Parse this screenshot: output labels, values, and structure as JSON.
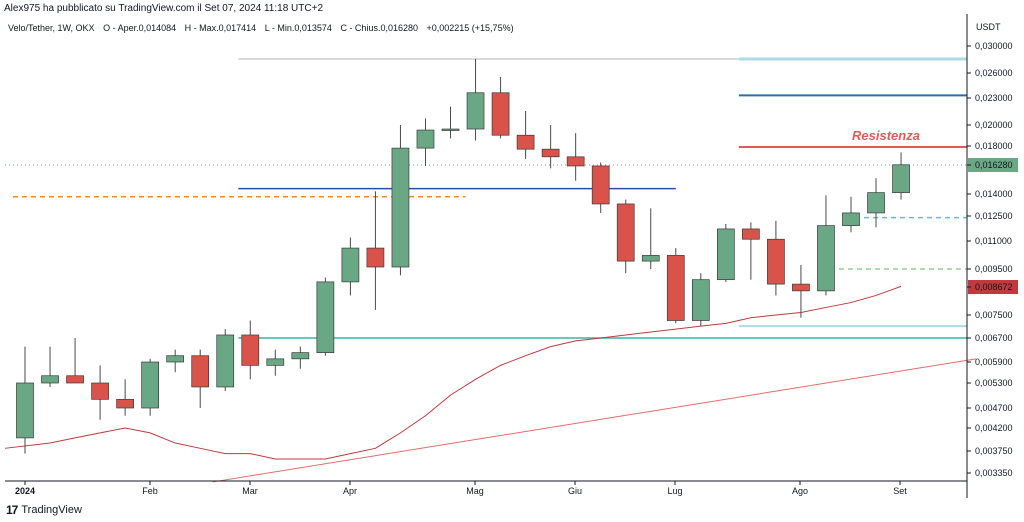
{
  "header": {
    "published": "Alex975 ha pubblicato su TradingView.com il Set 07, 2024 11:18 UTC+2",
    "legend_symbol": "Velo/Tether, 1W, OKX",
    "legend_open": "O - Aper.0,014084",
    "legend_high": "H - Max.0,017414",
    "legend_low": "L - Min.0,013574",
    "legend_close": "C - Chius.0,016280",
    "legend_change": "+0,002215 (+15,75%)"
  },
  "footer": {
    "brand": "TradingView"
  },
  "colors": {
    "up": "#6aa784",
    "down": "#d9534a",
    "ma": "#c0393d",
    "resistance": "#e05a5a"
  },
  "chart_data": {
    "type": "candlestick",
    "title": "Velo/Tether, 1W, OKX",
    "currency": "USDT",
    "y_ticks": [
      "0,030000",
      "0,026000",
      "0,023000",
      "0,020000",
      "0,018000",
      "0,016280",
      "0,014000",
      "0,012500",
      "0,011000",
      "0,009500",
      "0,008672",
      "0,007500",
      "0,006700",
      "0,005900",
      "0,005300",
      "0,004700",
      "0,004200",
      "0,003750",
      "0,003350"
    ],
    "x_ticks": [
      "2024",
      "Feb",
      "Mar",
      "Apr",
      "Mag",
      "Giu",
      "Lug",
      "Ago",
      "Set"
    ],
    "price_tag": {
      "value": "0,016280",
      "color": "#6aa784"
    },
    "ma_tag": {
      "value": "0,008672",
      "color": "#c0393d"
    },
    "annotation": "Resistenza",
    "candles": [
      {
        "o": 0.004,
        "h": 0.0064,
        "l": 0.0037,
        "c": 0.0053
      },
      {
        "o": 0.0053,
        "h": 0.0064,
        "l": 0.0052,
        "c": 0.0055
      },
      {
        "o": 0.0055,
        "h": 0.0067,
        "l": 0.0053,
        "c": 0.0053
      },
      {
        "o": 0.0053,
        "h": 0.0058,
        "l": 0.0044,
        "c": 0.0049
      },
      {
        "o": 0.0049,
        "h": 0.0054,
        "l": 0.0045,
        "c": 0.0047
      },
      {
        "o": 0.0047,
        "h": 0.006,
        "l": 0.0045,
        "c": 0.0059
      },
      {
        "o": 0.0059,
        "h": 0.0063,
        "l": 0.0056,
        "c": 0.0061
      },
      {
        "o": 0.0061,
        "h": 0.0063,
        "l": 0.0047,
        "c": 0.0052
      },
      {
        "o": 0.0052,
        "h": 0.007,
        "l": 0.0051,
        "c": 0.0068
      },
      {
        "o": 0.0068,
        "h": 0.0073,
        "l": 0.0054,
        "c": 0.0058
      },
      {
        "o": 0.0058,
        "h": 0.0063,
        "l": 0.0055,
        "c": 0.006
      },
      {
        "o": 0.006,
        "h": 0.0064,
        "l": 0.0057,
        "c": 0.0062
      },
      {
        "o": 0.0062,
        "h": 0.0091,
        "l": 0.0061,
        "c": 0.0089
      },
      {
        "o": 0.0089,
        "h": 0.0112,
        "l": 0.0083,
        "c": 0.0106
      },
      {
        "o": 0.0106,
        "h": 0.0142,
        "l": 0.0077,
        "c": 0.0096
      },
      {
        "o": 0.0096,
        "h": 0.02,
        "l": 0.0092,
        "c": 0.0178
      },
      {
        "o": 0.0178,
        "h": 0.0207,
        "l": 0.0162,
        "c": 0.0195
      },
      {
        "o": 0.0195,
        "h": 0.022,
        "l": 0.0187,
        "c": 0.0196
      },
      {
        "o": 0.0196,
        "h": 0.028,
        "l": 0.0185,
        "c": 0.0236
      },
      {
        "o": 0.0236,
        "h": 0.0255,
        "l": 0.0187,
        "c": 0.019
      },
      {
        "o": 0.019,
        "h": 0.0215,
        "l": 0.0168,
        "c": 0.0177
      },
      {
        "o": 0.0177,
        "h": 0.02,
        "l": 0.016,
        "c": 0.017
      },
      {
        "o": 0.017,
        "h": 0.0192,
        "l": 0.015,
        "c": 0.0162
      },
      {
        "o": 0.0162,
        "h": 0.0165,
        "l": 0.0127,
        "c": 0.0133
      },
      {
        "o": 0.0133,
        "h": 0.0136,
        "l": 0.0093,
        "c": 0.0099
      },
      {
        "o": 0.0099,
        "h": 0.013,
        "l": 0.0095,
        "c": 0.0102
      },
      {
        "o": 0.0102,
        "h": 0.0106,
        "l": 0.0072,
        "c": 0.0073
      },
      {
        "o": 0.0073,
        "h": 0.0093,
        "l": 0.0071,
        "c": 0.009
      },
      {
        "o": 0.009,
        "h": 0.012,
        "l": 0.0089,
        "c": 0.0117
      },
      {
        "o": 0.0117,
        "h": 0.0121,
        "l": 0.009,
        "c": 0.0111
      },
      {
        "o": 0.0111,
        "h": 0.0122,
        "l": 0.0083,
        "c": 0.0088
      },
      {
        "o": 0.0088,
        "h": 0.0097,
        "l": 0.0074,
        "c": 0.0085
      },
      {
        "o": 0.0085,
        "h": 0.0139,
        "l": 0.0083,
        "c": 0.0119
      },
      {
        "o": 0.0119,
        "h": 0.0138,
        "l": 0.0115,
        "c": 0.0127
      },
      {
        "o": 0.0127,
        "h": 0.0152,
        "l": 0.0118,
        "c": 0.0141
      },
      {
        "o": 0.0141,
        "h": 0.0174,
        "l": 0.0136,
        "c": 0.0163
      }
    ],
    "ma_series": [
      0.0038,
      0.0039,
      0.004,
      0.0041,
      0.0042,
      0.0041,
      0.0039,
      0.0038,
      0.0037,
      0.0037,
      0.0036,
      0.0036,
      0.0036,
      0.0037,
      0.0038,
      0.0041,
      0.0045,
      0.005,
      0.0054,
      0.0058,
      0.0061,
      0.0064,
      0.0066,
      0.0067,
      0.0068,
      0.0069,
      0.007,
      0.0071,
      0.0072,
      0.0074,
      0.0075,
      0.0076,
      0.0078,
      0.008,
      0.0083,
      0.0087
    ],
    "levels": [
      {
        "price": 0.028,
        "color": "#b2b5be",
        "width": 1,
        "dash": "",
        "from": 9,
        "to": null
      },
      {
        "price": 0.028,
        "color": "#a9dbe9",
        "width": 3,
        "dash": "",
        "from": 29,
        "to": null
      },
      {
        "price": 0.0233,
        "color": "#2a6fb0",
        "width": 2,
        "dash": "",
        "from": 29,
        "to": null
      },
      {
        "price": 0.0179,
        "color": "#e05a5a",
        "width": 2,
        "dash": "",
        "from": 29,
        "to": null
      },
      {
        "price": 0.0144,
        "color": "#2c4bae",
        "width": 1.5,
        "dash": "",
        "from": 9,
        "to": 26
      },
      {
        "price": 0.0138,
        "color": "#f08a24",
        "width": 1.5,
        "dash": "5,4",
        "from": 0,
        "to": 17.6
      },
      {
        "price": 0.0124,
        "color": "#5fbfd8",
        "width": 1.5,
        "dash": "5,4",
        "from": 34,
        "to": null
      },
      {
        "price": 0.0095,
        "color": "#5cb85c",
        "width": 1,
        "dash": "5,4",
        "from": 33,
        "to": null
      },
      {
        "price": 0.0071,
        "color": "#a9dbe9",
        "width": 2,
        "dash": "",
        "from": 29,
        "to": null
      },
      {
        "price": 0.0067,
        "color": "#3bb3a9",
        "width": 1.5,
        "dash": "",
        "from": 9,
        "to": null
      }
    ],
    "trendline": {
      "from": [
        7.5,
        0.0032
      ],
      "to": [
        38,
        0.006
      ]
    }
  }
}
